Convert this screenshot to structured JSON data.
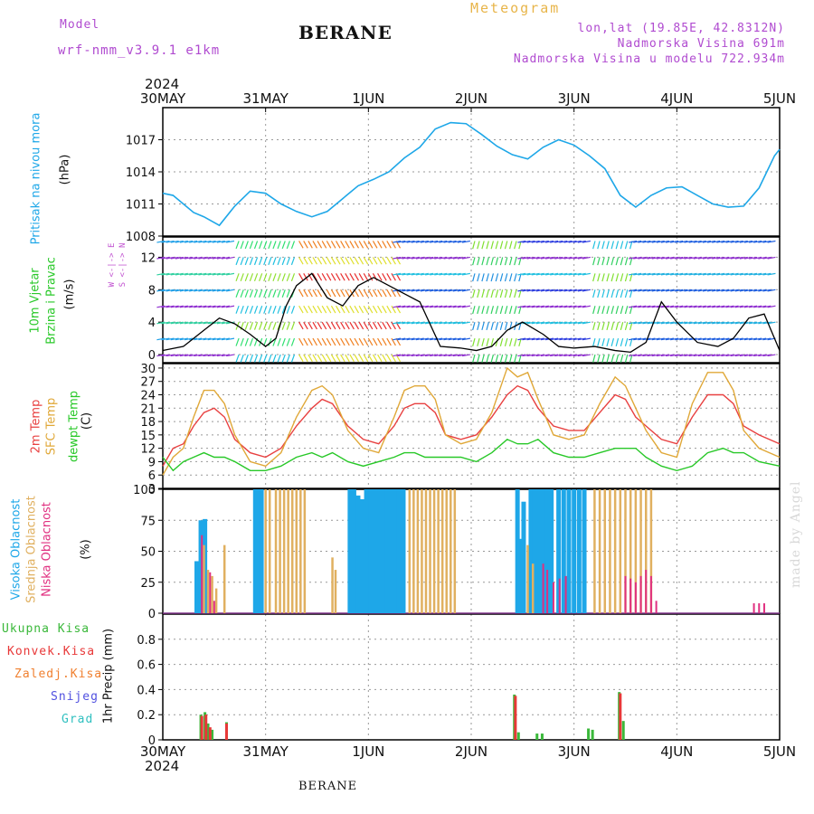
{
  "header": {
    "model_label": "Model",
    "model_name": "wrf-nmm_v3.9.1  e1km",
    "station": "BERANE",
    "meteogram_label": "Meteogram",
    "coords": "lon,lat (19.85E, 42.8312N)",
    "elevation": "Nadmorska Visina 691m",
    "model_elevation": "Nadmorska Visina u modelu 722.934m",
    "year_top": "2024",
    "year_bottom": "2024",
    "footer_station": "BERANE",
    "credit": "made by Angel"
  },
  "colors": {
    "pressure": "#1ea7e8",
    "wind_speed": "#000000",
    "gust": "#e85050",
    "temp2m": "#e84040",
    "sfc_temp": "#e0a838",
    "dewpt": "#28c828",
    "high_cloud": "#1ea7e8",
    "mid_cloud": "#e0b060",
    "low_cloud": "#e03080",
    "total_precip": "#3ab83a",
    "conv_precip": "#e83838",
    "frozen_precip": "#f08030",
    "snow": "#5050e0",
    "hail": "#30c0c0"
  },
  "chart_data": [
    {
      "type": "line",
      "title": "Pritisak na nivou mora",
      "ylabel": "(hPa)",
      "x_ticks": [
        "30MAY",
        "31MAY",
        "1JUN",
        "2JUN",
        "3JUN",
        "4JUN",
        "5JUN"
      ],
      "ylim": [
        1008,
        1020
      ],
      "y_ticks": [
        1008,
        1011,
        1014,
        1017
      ],
      "x": [
        0,
        0.1,
        0.2,
        0.3,
        0.4,
        0.55,
        0.7,
        0.85,
        1.0,
        1.15,
        1.3,
        1.45,
        1.6,
        1.75,
        1.9,
        2.05,
        2.2,
        2.35,
        2.5,
        2.65,
        2.8,
        2.95,
        3.1,
        3.25,
        3.4,
        3.55,
        3.7,
        3.85,
        4.0,
        4.15,
        4.3,
        4.45,
        4.6,
        4.75,
        4.9,
        5.05,
        5.2,
        5.35,
        5.5,
        5.65,
        5.8,
        5.95,
        6.0
      ],
      "series": [
        {
          "name": "Pritisak na nivou mora",
          "values": [
            1012.0,
            1011.8,
            1011.0,
            1010.2,
            1009.8,
            1009.0,
            1010.8,
            1012.2,
            1012.0,
            1011.0,
            1010.3,
            1009.8,
            1010.3,
            1011.5,
            1012.7,
            1013.3,
            1014.0,
            1015.3,
            1016.3,
            1018.0,
            1018.6,
            1018.5,
            1017.5,
            1016.4,
            1015.6,
            1015.2,
            1016.3,
            1017.0,
            1016.5,
            1015.5,
            1014.3,
            1011.8,
            1010.7,
            1011.8,
            1012.5,
            1012.6,
            1011.8,
            1011.0,
            1010.7,
            1010.8,
            1012.5,
            1015.5,
            1016.1
          ]
        }
      ]
    },
    {
      "type": "line",
      "title": "10m Vjetar Brzina i Pravac",
      "ylabel": "(m/s)",
      "compass_label": "W <-|-> E",
      "compass_label_ns": "S <-|-> N",
      "ylim": [
        -1,
        14.5
      ],
      "y_ticks": [
        0,
        4,
        8,
        12
      ],
      "x": [
        0,
        0.2,
        0.4,
        0.55,
        0.7,
        0.85,
        1.0,
        1.1,
        1.2,
        1.3,
        1.45,
        1.6,
        1.75,
        1.9,
        2.05,
        2.2,
        2.35,
        2.5,
        2.7,
        2.9,
        3.05,
        3.2,
        3.35,
        3.5,
        3.7,
        3.85,
        4.0,
        4.2,
        4.4,
        4.55,
        4.7,
        4.85,
        5.0,
        5.2,
        5.4,
        5.55,
        5.7,
        5.85,
        6.0
      ],
      "series": [
        {
          "name": "Brzina",
          "values": [
            0.5,
            1.0,
            3.0,
            4.5,
            3.8,
            2.5,
            1.0,
            2.0,
            6.0,
            8.5,
            10.0,
            7.0,
            6.0,
            8.5,
            9.5,
            8.5,
            7.5,
            6.5,
            1.0,
            0.8,
            0.5,
            1.0,
            3.0,
            4.0,
            2.5,
            1.0,
            0.8,
            1.0,
            0.5,
            0.3,
            1.5,
            6.5,
            4.0,
            1.5,
            1.0,
            2.0,
            4.5,
            5.0,
            0.5
          ]
        }
      ],
      "barb_rows": [
        0,
        2,
        4,
        6,
        8,
        10,
        12,
        14
      ]
    },
    {
      "type": "line",
      "title": "2m Temp / SFC Temp / dewpt Temp",
      "ylabel": "(C)",
      "ylim": [
        3,
        31
      ],
      "y_ticks": [
        3,
        6,
        9,
        12,
        15,
        18,
        21,
        24,
        27,
        30
      ],
      "x": [
        0,
        0.1,
        0.2,
        0.3,
        0.4,
        0.5,
        0.6,
        0.7,
        0.85,
        1.0,
        1.15,
        1.3,
        1.45,
        1.55,
        1.65,
        1.8,
        1.95,
        2.1,
        2.25,
        2.35,
        2.45,
        2.55,
        2.65,
        2.75,
        2.9,
        3.05,
        3.2,
        3.35,
        3.45,
        3.55,
        3.65,
        3.8,
        3.95,
        4.1,
        4.25,
        4.4,
        4.5,
        4.6,
        4.7,
        4.85,
        5.0,
        5.15,
        5.3,
        5.45,
        5.55,
        5.65,
        5.8,
        6.0
      ],
      "series": [
        {
          "name": "2m Temp",
          "values": [
            8,
            12,
            13,
            17,
            20,
            21,
            19,
            14,
            11,
            10,
            12,
            17,
            21,
            23,
            22,
            17,
            14,
            13,
            17,
            21,
            22,
            22,
            20,
            15,
            14,
            15,
            19,
            24,
            26,
            25,
            21,
            17,
            16,
            16,
            20,
            24,
            23,
            19,
            17,
            14,
            13,
            19,
            24,
            24,
            22,
            17,
            15,
            13
          ]
        },
        {
          "name": "SFC Temp",
          "values": [
            6,
            10,
            12,
            19,
            25,
            25,
            22,
            15,
            9,
            8,
            11,
            19,
            25,
            26,
            24,
            16,
            12,
            11,
            19,
            25,
            26,
            26,
            23,
            15,
            13,
            14,
            20,
            30,
            28,
            29,
            23,
            15,
            14,
            15,
            22,
            28,
            26,
            21,
            16,
            11,
            10,
            22,
            29,
            29,
            25,
            16,
            12,
            10
          ]
        },
        {
          "name": "dewpt Temp",
          "values": [
            10,
            7,
            9,
            10,
            11,
            10,
            10,
            9,
            7,
            7,
            8,
            10,
            11,
            10,
            11,
            9,
            8,
            9,
            10,
            11,
            11,
            10,
            10,
            10,
            10,
            9,
            11,
            14,
            13,
            13,
            14,
            11,
            10,
            10,
            11,
            12,
            12,
            12,
            10,
            8,
            7,
            8,
            11,
            12,
            11,
            11,
            9,
            8
          ]
        }
      ]
    },
    {
      "type": "bar",
      "title": "Visoka / Srednja / Niska Oblacnost",
      "ylabel": "(%)",
      "ylim": [
        0,
        100
      ],
      "y_ticks": [
        0,
        25,
        50,
        75,
        100
      ],
      "series": [
        {
          "name": "Visoka Oblacnost",
          "x": [
            0.33,
            0.37,
            0.41,
            0.9,
            0.93,
            0.96,
            1.82,
            1.86,
            1.9,
            1.94,
            1.98,
            2.02,
            2.06,
            2.1,
            2.14,
            2.18,
            2.22,
            2.26,
            2.3,
            2.34,
            3.45,
            3.48,
            3.51,
            3.58,
            3.62,
            3.66,
            3.7,
            3.74,
            3.78,
            3.85,
            3.9,
            3.95,
            4.0,
            4.05,
            4.1
          ],
          "values": [
            42,
            75,
            76,
            100,
            100,
            100,
            100,
            100,
            95,
            92,
            100,
            100,
            100,
            100,
            100,
            100,
            100,
            100,
            100,
            100,
            100,
            60,
            90,
            100,
            100,
            100,
            100,
            100,
            100,
            100,
            100,
            100,
            100,
            100,
            100
          ]
        },
        {
          "name": "Srednja Oblacnost",
          "x": [
            0.4,
            0.44,
            0.48,
            0.52,
            0.6,
            1.0,
            1.04,
            1.1,
            1.14,
            1.18,
            1.22,
            1.26,
            1.3,
            1.34,
            1.38,
            1.65,
            1.68,
            2.4,
            2.44,
            2.48,
            2.52,
            2.56,
            2.6,
            2.64,
            2.68,
            2.72,
            2.76,
            2.8,
            2.84,
            3.55,
            3.6,
            4.2,
            4.25,
            4.3,
            4.35,
            4.4,
            4.45,
            4.5,
            4.55,
            4.6,
            4.65,
            4.7,
            4.75
          ],
          "values": [
            55,
            35,
            30,
            20,
            55,
            100,
            100,
            100,
            100,
            100,
            100,
            100,
            100,
            100,
            100,
            45,
            35,
            100,
            100,
            100,
            100,
            100,
            100,
            100,
            100,
            100,
            100,
            100,
            100,
            55,
            40,
            100,
            100,
            100,
            100,
            100,
            100,
            100,
            100,
            100,
            100,
            100,
            100
          ]
        },
        {
          "name": "Niska Oblacnost",
          "x": [
            0.38,
            0.46,
            0.5,
            3.7,
            3.74,
            3.8,
            3.86,
            3.92,
            4.5,
            4.55,
            4.6,
            4.65,
            4.7,
            4.75,
            4.8,
            5.75,
            5.8,
            5.85
          ],
          "values": [
            63,
            33,
            10,
            40,
            35,
            25,
            28,
            30,
            30,
            28,
            25,
            30,
            35,
            30,
            10,
            8,
            8,
            8
          ]
        }
      ]
    },
    {
      "type": "bar",
      "ylabel": "1hr Precip (mm)",
      "ylim": [
        0,
        1.0
      ],
      "y_ticks": [
        0,
        0.2,
        0.4,
        0.6,
        0.8
      ],
      "series": [
        {
          "name": "Ukupna Kisa",
          "x": [
            0.37,
            0.41,
            0.44,
            0.48,
            0.62,
            3.42,
            3.46,
            3.64,
            3.69,
            4.14,
            4.18,
            4.44,
            4.48
          ],
          "values": [
            0.2,
            0.22,
            0.13,
            0.08,
            0.14,
            0.36,
            0.06,
            0.05,
            0.05,
            0.09,
            0.08,
            0.38,
            0.15
          ]
        },
        {
          "name": "Konvek.Kisa",
          "x": [
            0.38,
            0.42,
            0.46,
            0.62,
            3.43,
            4.45
          ],
          "values": [
            0.19,
            0.2,
            0.1,
            0.13,
            0.35,
            0.37
          ]
        },
        {
          "name": "Zaledj.Kisa",
          "x": [],
          "values": []
        },
        {
          "name": "Snijeg",
          "x": [],
          "values": []
        },
        {
          "name": "Grad",
          "x": [],
          "values": []
        }
      ]
    }
  ],
  "panel_titles": [
    {
      "lines": [
        "Pritisak na nivou mora"
      ],
      "unit": "(hPa)"
    },
    {
      "lines": [
        "10m Vjetar",
        "Brzina i Pravac"
      ],
      "unit": "(m/s)"
    },
    {
      "lines": [
        "2m Temp",
        "SFC Temp",
        "dewpt Temp"
      ],
      "unit": "(C)"
    },
    {
      "lines": [
        "Visoka Oblacnost",
        "Srednja Oblacnost",
        "Niska Oblacnost"
      ],
      "unit": "(%)"
    },
    {
      "lines": [],
      "unit": "1hr Precip (mm)"
    }
  ],
  "precip_legend": [
    "Ukupna Kisa",
    "Konvek.Kisa",
    "Zaledj.Kisa",
    "Snijeg",
    "Grad"
  ]
}
